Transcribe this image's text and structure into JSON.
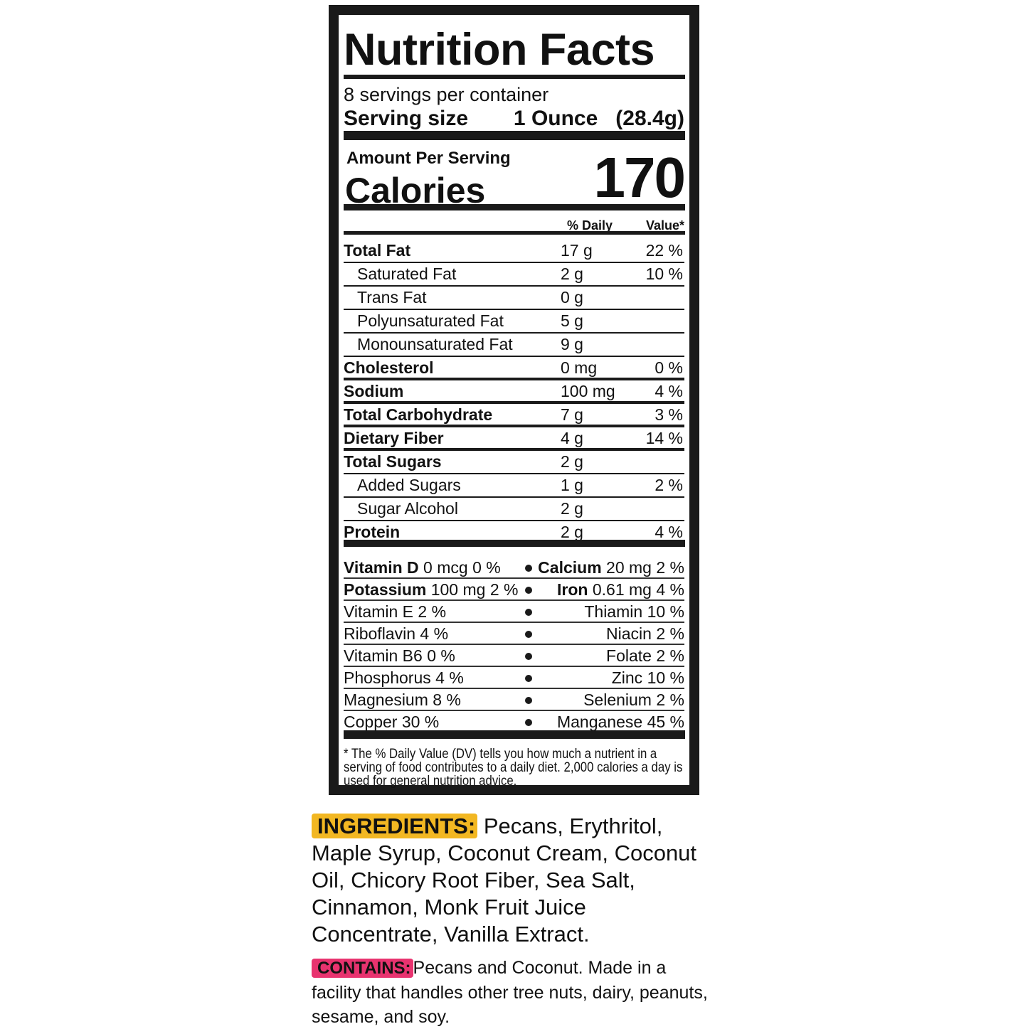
{
  "label": {
    "title": "Nutrition Facts",
    "servings_per_container": "8 servings per container",
    "serving_size_label": "Serving size",
    "serving_size_value": "1 Ounce   (28.4g)",
    "amount_per_serving": "Amount Per Serving",
    "calories_label": "Calories",
    "calories_value": "170",
    "dv_header_1": "% Daily",
    "dv_header_2": "Value*",
    "nutrients": [
      {
        "name": "Total Fat",
        "amount": "17 g",
        "dv": "22 %",
        "bold": true,
        "indent": false
      },
      {
        "name": "Saturated Fat",
        "amount": "2 g",
        "dv": "10 %",
        "bold": false,
        "indent": true
      },
      {
        "name": "Trans Fat",
        "amount": "0 g",
        "dv": "",
        "bold": false,
        "indent": true
      },
      {
        "name": "Polyunsaturated Fat",
        "amount": "5 g",
        "dv": "",
        "bold": false,
        "indent": true
      },
      {
        "name": "Monounsaturated Fat",
        "amount": "9 g",
        "dv": "",
        "bold": false,
        "indent": true
      },
      {
        "name": "Cholesterol",
        "amount": "0 mg",
        "dv": "0 %",
        "bold": true,
        "indent": false
      },
      {
        "name": "Sodium",
        "amount": "100 mg",
        "dv": "4 %",
        "bold": true,
        "indent": false
      },
      {
        "name": "Total Carbohydrate",
        "amount": "7 g",
        "dv": "3 %",
        "bold": true,
        "indent": false
      },
      {
        "name": "Dietary Fiber",
        "amount": "4 g",
        "dv": "14 %",
        "bold": true,
        "indent": false
      },
      {
        "name": "Total Sugars",
        "amount": "2 g",
        "dv": "",
        "bold": true,
        "indent": false
      },
      {
        "name": "Added Sugars",
        "amount": "1 g",
        "dv": "2 %",
        "bold": false,
        "indent": true
      },
      {
        "name": "Sugar Alcohol",
        "amount": "2 g",
        "dv": "",
        "bold": false,
        "indent": true
      },
      {
        "name": "Protein",
        "amount": "2 g",
        "dv": "4 %",
        "bold": true,
        "indent": false
      }
    ],
    "vitamins": [
      {
        "left_name": "Vitamin D",
        "left_value": "0 mcg 0 %",
        "left_bold": true,
        "right_name": "Calcium",
        "right_value": "20 mg 2 %",
        "right_bold": true
      },
      {
        "left_name": "Potassium",
        "left_value": "100 mg 2 %",
        "left_bold": true,
        "right_name": "Iron",
        "right_value": "0.61 mg 4 %",
        "right_bold": true
      },
      {
        "left_name": "Vitamin E",
        "left_value": "2 %",
        "left_bold": false,
        "right_name": "Thiamin",
        "right_value": "10 %",
        "right_bold": false
      },
      {
        "left_name": "Riboflavin",
        "left_value": "4 %",
        "left_bold": false,
        "right_name": "Niacin",
        "right_value": "2 %",
        "right_bold": false
      },
      {
        "left_name": "Vitamin B6",
        "left_value": "0 %",
        "left_bold": false,
        "right_name": "Folate",
        "right_value": "2 %",
        "right_bold": false
      },
      {
        "left_name": "Phosphorus",
        "left_value": "4 %",
        "left_bold": false,
        "right_name": "Zinc",
        "right_value": "10 %",
        "right_bold": false
      },
      {
        "left_name": "Magnesium",
        "left_value": "8 %",
        "left_bold": false,
        "right_name": "Selenium",
        "right_value": "2 %",
        "right_bold": false
      },
      {
        "left_name": "Copper",
        "left_value": "30 %",
        "left_bold": false,
        "right_name": "Manganese",
        "right_value": "45 %",
        "right_bold": false
      }
    ],
    "footnote": "* The % Daily Value (DV) tells you how much a nutrient in a serving of food contributes to a daily diet. 2,000 calories a day is used for general nutrition advice."
  },
  "ingredients": {
    "tag": "INGREDIENTS:",
    "text": "Pecans, Erythritol, Maple Syrup, Coconut Cream, Coconut Oil, Chicory Root Fiber, Sea Salt, Cinnamon, Monk Fruit Juice Concentrate, Vanilla Extract.",
    "tag_color": "#f2b722"
  },
  "contains": {
    "tag": "CONTAINS:",
    "text": "Pecans and Coconut. Made in a facility that handles other tree nuts, dairy, peanuts, sesame, and soy.",
    "tag_color": "#e8336f"
  }
}
